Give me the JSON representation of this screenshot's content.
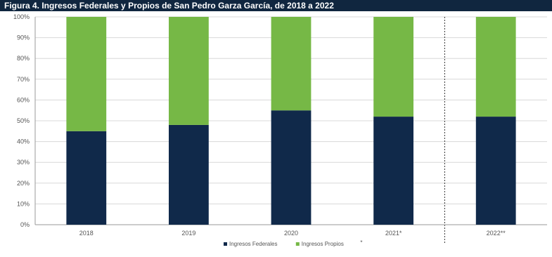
{
  "title": "Figura 4. Ingresos Federales y Propios de San Pedro Garza García, de 2018 a 2022",
  "chart_data": {
    "type": "bar",
    "stacked": true,
    "percent_stacked": true,
    "categories": [
      "2018",
      "2019",
      "2020",
      "2021*",
      "2022**"
    ],
    "series": [
      {
        "name": "Ingresos Federales",
        "values": [
          45,
          48,
          55,
          52,
          52
        ],
        "color": "#10294a"
      },
      {
        "name": "Ingresos Propios",
        "values": [
          55,
          52,
          45,
          48,
          48
        ],
        "color": "#76b846"
      }
    ],
    "ylim": [
      0,
      100
    ],
    "y_ticks": [
      "0%",
      "10%",
      "20%",
      "30%",
      "40%",
      "50%",
      "60%",
      "70%",
      "80%",
      "90%",
      "100%"
    ],
    "grid": true,
    "separator_after": "2021*",
    "legend_position": "bottom",
    "legend_note": "*"
  }
}
